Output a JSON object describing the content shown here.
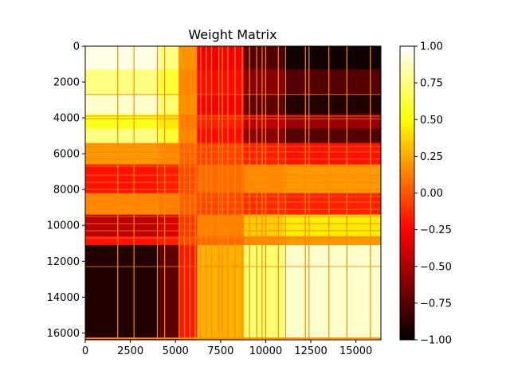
{
  "chart_data": {
    "type": "heatmap",
    "title": "Weight Matrix",
    "xlabel": "",
    "ylabel": "",
    "colormap": "hot",
    "colormap_stops": [
      "#000000",
      "#ff0000",
      "#ffff00",
      "#ffffff"
    ],
    "value_range": [
      -1.0,
      1.0
    ],
    "x_range": [
      0,
      16384
    ],
    "y_range": [
      0,
      16384
    ],
    "y_inverted": true,
    "x_ticks": [
      0,
      2500,
      5000,
      7500,
      10000,
      12500,
      15000
    ],
    "x_tick_labels": [
      "0",
      "2500",
      "5000",
      "7500",
      "10000",
      "12500",
      "15000"
    ],
    "y_ticks": [
      0,
      2000,
      4000,
      6000,
      8000,
      10000,
      12000,
      14000,
      16000
    ],
    "y_tick_labels": [
      "0",
      "2000",
      "4000",
      "6000",
      "8000",
      "10000",
      "12000",
      "14000",
      "16000"
    ],
    "colorbar_ticks": [
      1.0,
      0.75,
      0.5,
      0.25,
      0.0,
      -0.25,
      -0.5,
      -0.75,
      -1.0
    ],
    "colorbar_tick_labels": [
      "1.00",
      "0.75",
      "0.50",
      "0.25",
      "0.00",
      "−0.25",
      "−0.50",
      "−0.75",
      "−1.00"
    ],
    "row_bands": [
      {
        "y0": 0,
        "y1": 1300,
        "value": 0.95
      },
      {
        "y0": 1300,
        "y1": 2700,
        "value": 0.75
      },
      {
        "y0": 2700,
        "y1": 3800,
        "value": 0.9
      },
      {
        "y0": 3800,
        "y1": 4600,
        "value": 0.55
      },
      {
        "y0": 4600,
        "y1": 5400,
        "value": 0.75
      },
      {
        "y0": 5400,
        "y1": 6600,
        "value": 0.2
      },
      {
        "y0": 6600,
        "y1": 8200,
        "value": -0.2
      },
      {
        "y0": 8200,
        "y1": 9400,
        "value": 0.15
      },
      {
        "y0": 9400,
        "y1": 10600,
        "value": -0.45
      },
      {
        "y0": 10600,
        "y1": 11100,
        "value": -0.2
      },
      {
        "y0": 11100,
        "y1": 16384,
        "value": -0.9
      }
    ],
    "column_effect": [
      {
        "x0": 0,
        "x1": 4100,
        "factor": 1.0
      },
      {
        "x0": 4100,
        "x1": 5200,
        "factor": 0.8
      },
      {
        "x0": 5200,
        "x1": 6200,
        "factor": 0.2
      },
      {
        "x0": 6200,
        "x1": 8800,
        "factor": -0.3
      },
      {
        "x0": 8800,
        "x1": 11000,
        "factor": -0.8
      },
      {
        "x0": 11000,
        "x1": 16384,
        "factor": -1.0
      }
    ],
    "orange_columns": [
      1800,
      2700,
      4000,
      4400,
      5200,
      5500,
      5800,
      6100,
      6400,
      6700,
      7000,
      7400,
      7600,
      7900,
      8300,
      8700,
      9100,
      9500,
      9800,
      10000,
      10700,
      11100,
      12200,
      12400,
      13500,
      14500,
      15800
    ],
    "orange_rows": [
      16300
    ],
    "highlight_rows": [
      2700,
      3900,
      4050,
      5600,
      5900,
      6300,
      6700,
      7200,
      7600,
      8000,
      8400,
      8700,
      9100,
      9500,
      9900,
      10300,
      10700,
      12300
    ]
  }
}
